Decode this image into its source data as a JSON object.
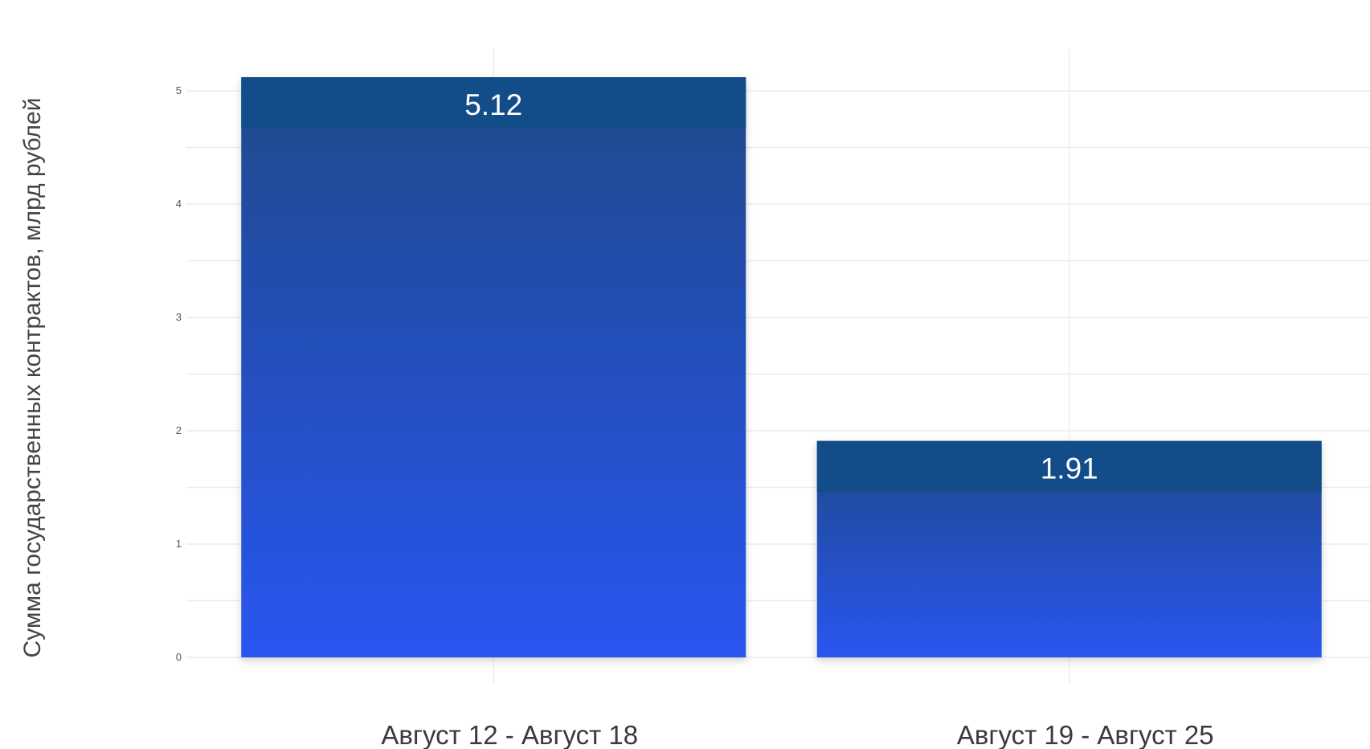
{
  "chart_data": {
    "type": "bar",
    "categories": [
      "Август 12 - Август 18",
      "Август 19 - Август 25"
    ],
    "values": [
      5.12,
      1.91
    ],
    "value_labels": [
      "5.12",
      "1.91"
    ],
    "title": "",
    "xlabel": "",
    "ylabel": "Сумма государственных контрактов, млрд рублей",
    "ylim": [
      0,
      5.3
    ],
    "yticks": [
      0,
      1,
      2,
      3,
      4,
      5
    ],
    "grid": true,
    "colors": {
      "bar_top": "#124d8a",
      "bar_mid": "#1f4a8a",
      "bar_bottom": "#2a55f0",
      "grid": "#ececec"
    }
  }
}
